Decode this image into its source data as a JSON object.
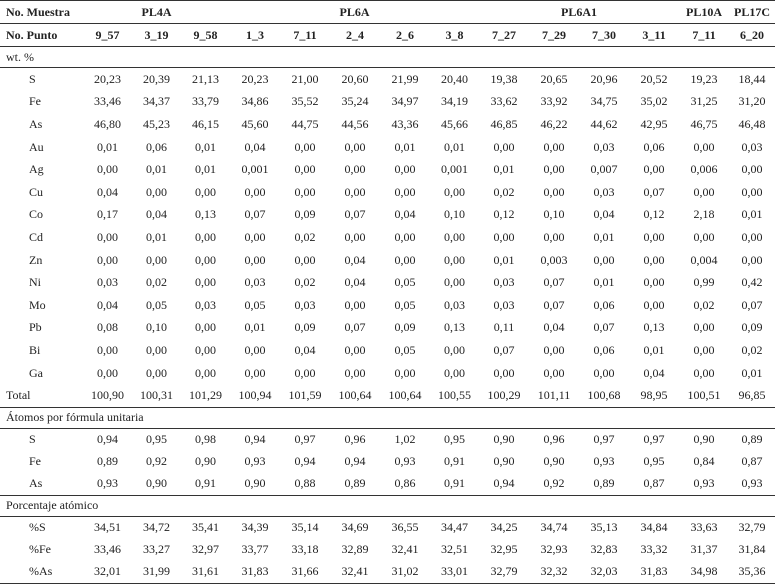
{
  "header": {
    "muestra_label": "No. Muestra",
    "punto_label": "No. Punto",
    "groups": [
      {
        "label": "PL4A",
        "span": 3
      },
      {
        "label": "PL6A",
        "span": 5
      },
      {
        "label": "PL6A1",
        "span": 4
      },
      {
        "label": "PL10A",
        "span": 1
      },
      {
        "label": "PL17C",
        "span": 1
      }
    ],
    "points": [
      "9_57",
      "3_19",
      "9_58",
      "1_3",
      "7_11",
      "2_4",
      "2_6",
      "3_8",
      "7_27",
      "7_29",
      "7_30",
      "3_11",
      "7_11",
      "6_20"
    ]
  },
  "sections": [
    {
      "title": "wt. %",
      "kind": "wt",
      "rows": [
        {
          "label": "S",
          "values": [
            "20,23",
            "20,39",
            "21,13",
            "20,23",
            "21,00",
            "20,60",
            "21,99",
            "20,40",
            "19,38",
            "20,65",
            "20,96",
            "20,52",
            "19,23",
            "18,44"
          ]
        },
        {
          "label": "Fe",
          "values": [
            "33,46",
            "34,37",
            "33,79",
            "34,86",
            "35,52",
            "35,24",
            "34,97",
            "34,19",
            "33,62",
            "33,92",
            "34,75",
            "35,02",
            "31,25",
            "31,20"
          ]
        },
        {
          "label": "As",
          "values": [
            "46,80",
            "45,23",
            "46,15",
            "45,60",
            "44,75",
            "44,56",
            "43,36",
            "45,66",
            "46,85",
            "46,22",
            "44,62",
            "42,95",
            "46,75",
            "46,48"
          ]
        },
        {
          "label": "Au",
          "values": [
            "0,01",
            "0,06",
            "0,01",
            "0,04",
            "0,00",
            "0,00",
            "0,01",
            "0,01",
            "0,00",
            "0,00",
            "0,03",
            "0,06",
            "0,00",
            "0,03"
          ]
        },
        {
          "label": "Ag",
          "values": [
            "0,00",
            "0,01",
            "0,01",
            "0,001",
            "0,00",
            "0,00",
            "0,00",
            "0,001",
            "0,01",
            "0,00",
            "0,007",
            "0,00",
            "0,006",
            "0,00"
          ]
        },
        {
          "label": "Cu",
          "values": [
            "0,04",
            "0,00",
            "0,00",
            "0,00",
            "0,00",
            "0,00",
            "0,00",
            "0,00",
            "0,02",
            "0,00",
            "0,03",
            "0,07",
            "0,00",
            "0,00"
          ]
        },
        {
          "label": "Co",
          "values": [
            "0,17",
            "0,04",
            "0,13",
            "0,07",
            "0,09",
            "0,07",
            "0,04",
            "0,10",
            "0,12",
            "0,10",
            "0,04",
            "0,12",
            "2,18",
            "0,01"
          ]
        },
        {
          "label": "Cd",
          "values": [
            "0,00",
            "0,01",
            "0,00",
            "0,00",
            "0,02",
            "0,00",
            "0,00",
            "0,00",
            "0,00",
            "0,00",
            "0,01",
            "0,00",
            "0,00",
            "0,00"
          ]
        },
        {
          "label": "Zn",
          "values": [
            "0,00",
            "0,00",
            "0,00",
            "0,00",
            "0,00",
            "0,04",
            "0,00",
            "0,00",
            "0,01",
            "0,003",
            "0,00",
            "0,00",
            "0,004",
            "0,00"
          ]
        },
        {
          "label": "Ni",
          "values": [
            "0,03",
            "0,02",
            "0,00",
            "0,03",
            "0,02",
            "0,04",
            "0,05",
            "0,00",
            "0,03",
            "0,07",
            "0,01",
            "0,00",
            "0,99",
            "0,42"
          ]
        },
        {
          "label": "Mo",
          "values": [
            "0,04",
            "0,05",
            "0,03",
            "0,05",
            "0,03",
            "0,00",
            "0,05",
            "0,03",
            "0,03",
            "0,07",
            "0,06",
            "0,00",
            "0,02",
            "0,07"
          ]
        },
        {
          "label": "Pb",
          "values": [
            "0,08",
            "0,10",
            "0,00",
            "0,01",
            "0,09",
            "0,07",
            "0,09",
            "0,13",
            "0,11",
            "0,04",
            "0,07",
            "0,13",
            "0,00",
            "0,09"
          ]
        },
        {
          "label": "Bi",
          "values": [
            "0,00",
            "0,00",
            "0,00",
            "0,00",
            "0,04",
            "0,00",
            "0,05",
            "0,00",
            "0,07",
            "0,00",
            "0,06",
            "0,01",
            "0,00",
            "0,02"
          ]
        },
        {
          "label": "Ga",
          "values": [
            "0,00",
            "0,00",
            "0,00",
            "0,00",
            "0,00",
            "0,00",
            "0,00",
            "0,00",
            "0,00",
            "0,00",
            "0,00",
            "0,04",
            "0,00",
            "0,01"
          ]
        },
        {
          "label": "Total",
          "total": true,
          "values": [
            "100,90",
            "100,31",
            "101,29",
            "100,94",
            "101,59",
            "100,64",
            "100,64",
            "100,55",
            "100,29",
            "101,11",
            "100,68",
            "98,95",
            "100,51",
            "96,85"
          ]
        }
      ]
    },
    {
      "title": "Átomos por fórmula unitaria",
      "kind": "atom",
      "rows": [
        {
          "label": "S",
          "values": [
            "0,94",
            "0,95",
            "0,98",
            "0,94",
            "0,97",
            "0,96",
            "1,02",
            "0,95",
            "0,90",
            "0,96",
            "0,97",
            "0,97",
            "0,90",
            "0,89"
          ]
        },
        {
          "label": "Fe",
          "values": [
            "0,89",
            "0,92",
            "0,90",
            "0,93",
            "0,94",
            "0,94",
            "0,93",
            "0,91",
            "0,90",
            "0,90",
            "0,93",
            "0,95",
            "0,84",
            "0,87"
          ]
        },
        {
          "label": "As",
          "values": [
            "0,93",
            "0,90",
            "0,91",
            "0,90",
            "0,88",
            "0,89",
            "0,86",
            "0,91",
            "0,94",
            "0,92",
            "0,89",
            "0,87",
            "0,93",
            "0,93"
          ]
        }
      ]
    },
    {
      "title": "Porcentaje atómico",
      "kind": "pct",
      "rows": [
        {
          "label": "%S",
          "values": [
            "34,51",
            "34,72",
            "35,41",
            "34,39",
            "35,14",
            "34,69",
            "36,55",
            "34,47",
            "34,25",
            "34,74",
            "35,13",
            "34,84",
            "33,63",
            "32,79"
          ]
        },
        {
          "label": "%Fe",
          "values": [
            "33,46",
            "33,27",
            "32,97",
            "33,77",
            "33,18",
            "32,89",
            "32,41",
            "32,51",
            "32,95",
            "32,93",
            "32,83",
            "33,32",
            "31,37",
            "31,84"
          ]
        },
        {
          "label": "%As",
          "values": [
            "32,01",
            "31,99",
            "31,61",
            "31,83",
            "31,66",
            "32,41",
            "31,02",
            "33,01",
            "32,79",
            "32,32",
            "32,03",
            "31,83",
            "34,98",
            "35,36"
          ]
        }
      ]
    }
  ]
}
